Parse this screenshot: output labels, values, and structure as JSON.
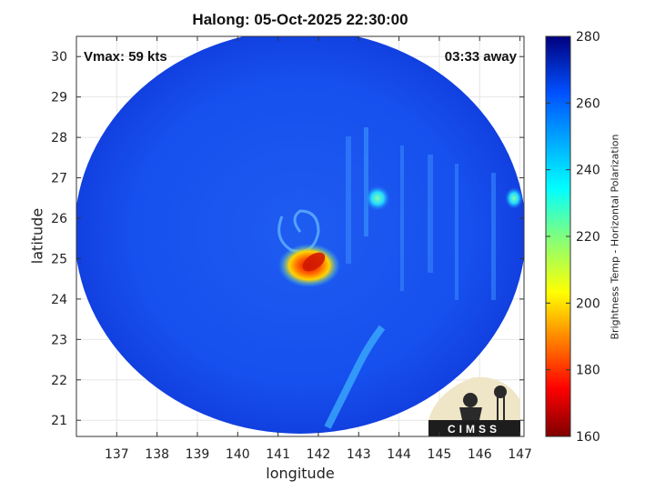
{
  "title": "Halong: 05-Oct-2025 22:30:00",
  "vmax_label": "Vmax: 59 kts",
  "time_away_label": "03:33 away",
  "logo_text": "CIMSS",
  "map": {
    "xlabel": "longitude",
    "ylabel": "latitude",
    "lon_range": [
      136,
      147.1
    ],
    "lat_range": [
      20.6,
      30.5
    ],
    "lon_ticks": [
      137,
      138,
      139,
      140,
      141,
      142,
      143,
      144,
      145,
      146,
      147
    ],
    "lat_ticks": [
      21,
      22,
      23,
      24,
      25,
      26,
      27,
      28,
      29,
      30
    ],
    "grid": true,
    "swath_center": [
      141.8,
      25.3
    ],
    "storm_center": [
      141.5,
      25.7
    ],
    "colormap": "jet"
  },
  "colorbar": {
    "label": "Brightness Temp - Horizontal Polarization",
    "min": 160,
    "max": 280,
    "ticks": [
      160,
      180,
      200,
      220,
      240,
      260,
      280
    ]
  }
}
